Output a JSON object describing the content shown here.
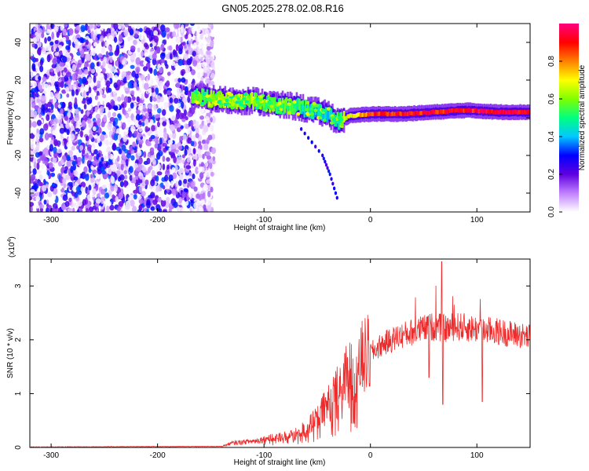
{
  "title": "GN05.2025.278.02.08.R16",
  "chart_data": [
    {
      "type": "heatmap",
      "title": "GN05.2025.278.02.08.R16",
      "xlabel": "Height of straight line (km)",
      "ylabel": "Frequency (Hz)",
      "xlim": [
        -320,
        150
      ],
      "ylim": [
        -50,
        50
      ],
      "xticks": [
        -300,
        -200,
        -100,
        0,
        100
      ],
      "yticks": [
        -40,
        -20,
        0,
        20,
        40
      ],
      "colorbar": {
        "label": "Normalized spectral amplitude",
        "range": [
          0.0,
          1.0
        ],
        "ticks": [
          0.0,
          0.2,
          0.4,
          0.6,
          0.8
        ],
        "tick_labels": [
          "0.0",
          "0.2",
          "0.4",
          "0.6",
          "0.8"
        ],
        "colors": [
          "#ffffff",
          "#c080ff",
          "#6000e0",
          "#0000ff",
          "#00c8ff",
          "#00ff80",
          "#80ff00",
          "#ffff00",
          "#ff8000",
          "#ff0000",
          "#ff0080"
        ]
      },
      "noise_region": {
        "x_range": [
          -320,
          -155
        ],
        "freq_range": [
          -50,
          50
        ],
        "amplitude_range": [
          0.0,
          0.35
        ]
      },
      "ridge": [
        {
          "x": -168,
          "f": 12,
          "amp": 0.5
        },
        {
          "x": -150,
          "f": 10,
          "amp": 0.6
        },
        {
          "x": -130,
          "f": 9,
          "amp": 0.65
        },
        {
          "x": -110,
          "f": 9,
          "amp": 0.6
        },
        {
          "x": -90,
          "f": 7,
          "amp": 0.55
        },
        {
          "x": -70,
          "f": 6,
          "amp": 0.5
        },
        {
          "x": -55,
          "f": 4,
          "amp": 0.45
        },
        {
          "x": -40,
          "f": 2,
          "amp": 0.45
        },
        {
          "x": -30,
          "f": -2,
          "amp": 0.5
        },
        {
          "x": -20,
          "f": 1,
          "amp": 0.7
        },
        {
          "x": 0,
          "f": 2,
          "amp": 0.85
        },
        {
          "x": 30,
          "f": 2,
          "amp": 0.9
        },
        {
          "x": 60,
          "f": 3,
          "amp": 0.9
        },
        {
          "x": 90,
          "f": 4,
          "amp": 0.9
        },
        {
          "x": 120,
          "f": 3,
          "amp": 0.92
        },
        {
          "x": 150,
          "f": 3,
          "amp": 0.92
        }
      ],
      "spur": [
        {
          "x": -65,
          "f": -6
        },
        {
          "x": -45,
          "f": -20
        },
        {
          "x": -38,
          "f": -30
        },
        {
          "x": -30,
          "f": -45
        }
      ]
    },
    {
      "type": "line",
      "xlabel": "Height of straight line (km)",
      "ylabel": "SNR (10 * v/v)",
      "y_multiplier": "(x10",
      "y_multiplier_exponent": "4",
      "y_multiplier_close": ")",
      "xlim": [
        -320,
        150
      ],
      "ylim": [
        0,
        3.5
      ],
      "xticks": [
        -300,
        -200,
        -100,
        0,
        100
      ],
      "yticks": [
        0,
        1,
        2,
        3
      ],
      "color": "#ee2a2a",
      "envelope": [
        {
          "x": -320,
          "y": 0.01
        },
        {
          "x": -140,
          "y": 0.02
        },
        {
          "x": -130,
          "y": 0.08
        },
        {
          "x": -110,
          "y": 0.12
        },
        {
          "x": -90,
          "y": 0.18
        },
        {
          "x": -70,
          "y": 0.25
        },
        {
          "x": -55,
          "y": 0.45
        },
        {
          "x": -40,
          "y": 0.8
        },
        {
          "x": -30,
          "y": 1.1
        },
        {
          "x": -20,
          "y": 1.4
        },
        {
          "x": -10,
          "y": 1.6
        },
        {
          "x": 0,
          "y": 1.75
        },
        {
          "x": 10,
          "y": 1.9
        },
        {
          "x": 25,
          "y": 2.05
        },
        {
          "x": 40,
          "y": 2.15
        },
        {
          "x": 60,
          "y": 2.25
        },
        {
          "x": 70,
          "y": 2.2
        },
        {
          "x": 80,
          "y": 2.25
        },
        {
          "x": 100,
          "y": 2.2
        },
        {
          "x": 120,
          "y": 2.15
        },
        {
          "x": 150,
          "y": 2.05
        }
      ],
      "peak": {
        "x": 67,
        "y": 3.45
      },
      "dips": [
        {
          "x": 68,
          "y": 0.8
        },
        {
          "x": 105,
          "y": 0.85
        },
        {
          "x": 55,
          "y": 1.3
        }
      ]
    }
  ]
}
